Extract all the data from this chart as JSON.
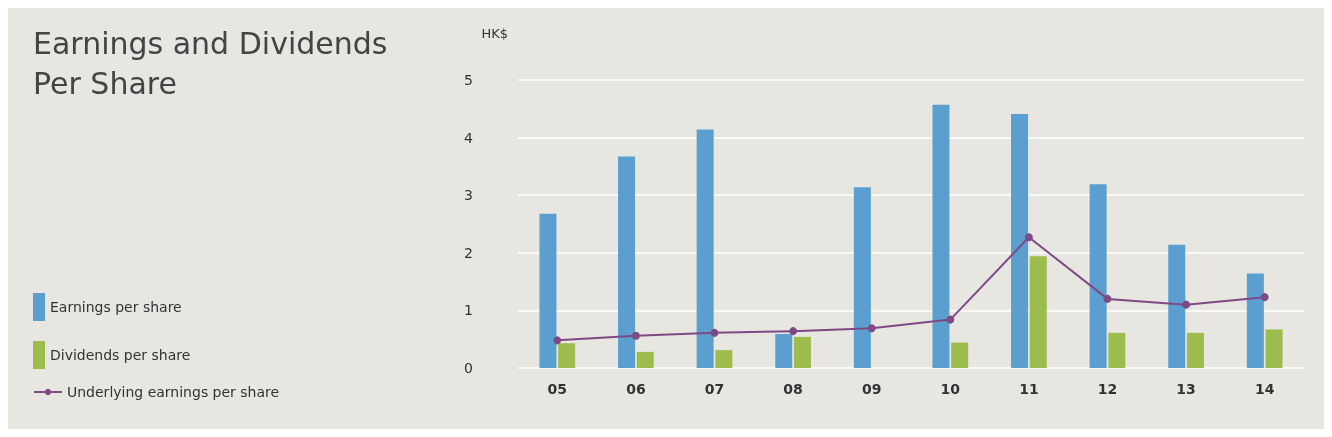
{
  "chart_data": {
    "type": "bar",
    "title": "Earnings and Dividends\nPer Share",
    "ylabel": "HK$",
    "categories": [
      "05",
      "06",
      "07",
      "08",
      "09",
      "10",
      "11",
      "12",
      "13",
      "14"
    ],
    "series": [
      {
        "name": "Earnings per share",
        "color": "#5b9fd0",
        "values": [
          2.68,
          3.67,
          4.14,
          0.59,
          3.14,
          4.57,
          4.41,
          3.19,
          2.14,
          1.64
        ]
      },
      {
        "name": "Dividends per share",
        "color": "#9cbd4e",
        "values": [
          0.43,
          0.28,
          0.31,
          0.54,
          null,
          0.44,
          1.94,
          0.61,
          0.61,
          0.67
        ]
      },
      {
        "name": "Underlying earnings per share",
        "type": "line",
        "color": "#7e4a86",
        "marker": "circle",
        "values": [
          0.48,
          0.56,
          0.61,
          0.64,
          0.69,
          0.84,
          2.27,
          1.2,
          1.1,
          1.23
        ]
      }
    ],
    "ylim": [
      0,
      5
    ],
    "yticks": [
      0,
      1,
      2,
      3,
      4,
      5
    ],
    "grid": "y",
    "legend": "bottom left"
  }
}
